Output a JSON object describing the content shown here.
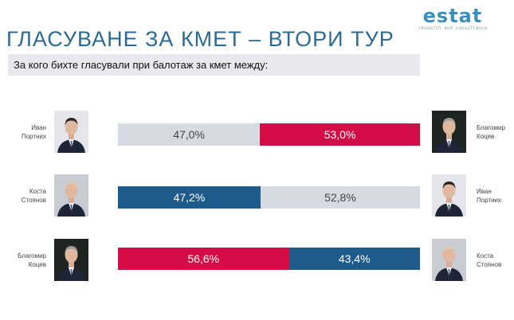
{
  "logo": {
    "word": "estat",
    "tagline": "research and consultance"
  },
  "title": "ГЛАСУВАНЕ ЗА КМЕТ – ВТОРИ ТУР",
  "question": "За кого бихте гласували при балотаж за кмет между:",
  "colors": {
    "grey": "#d6dbe3",
    "red": "#d50c45",
    "blue": "#1f5b8a"
  },
  "chart_data": {
    "type": "bar",
    "stacked": true,
    "title": "ГЛАСУВАНЕ ЗА КМЕТ – ВТОРИ ТУР",
    "matchups": [
      {
        "left": {
          "name": "Иван Портних",
          "line1": "Иван",
          "line2": "Портних",
          "value": 47.0,
          "label": "47,0%",
          "color": "grey",
          "photo": "dark-hair"
        },
        "right": {
          "name": "Благомир Коцев",
          "line1": "Благомир",
          "line2": "Коцев",
          "value": 53.0,
          "label": "53,0%",
          "color": "red",
          "photo": "grey-hair-dark"
        }
      },
      {
        "left": {
          "name": "Коста Стоянов",
          "line1": "Коста",
          "line2": "Стоянов",
          "value": 47.2,
          "label": "47,2%",
          "color": "blue",
          "photo": "bald"
        },
        "right": {
          "name": "Иван Портних",
          "line1": "Иван",
          "line2": "Портних",
          "value": 52.8,
          "label": "52,8%",
          "color": "grey",
          "photo": "dark-hair"
        }
      },
      {
        "left": {
          "name": "Благомир Коцев",
          "line1": "Благомир",
          "line2": "Коцев",
          "value": 56.6,
          "label": "56,6%",
          "color": "red",
          "photo": "grey-hair-dark"
        },
        "right": {
          "name": "Коста Стоянов",
          "line1": "Коста",
          "line2": "Стоянов",
          "value": 43.4,
          "label": "43,4%",
          "color": "blue",
          "photo": "bald"
        }
      }
    ]
  }
}
